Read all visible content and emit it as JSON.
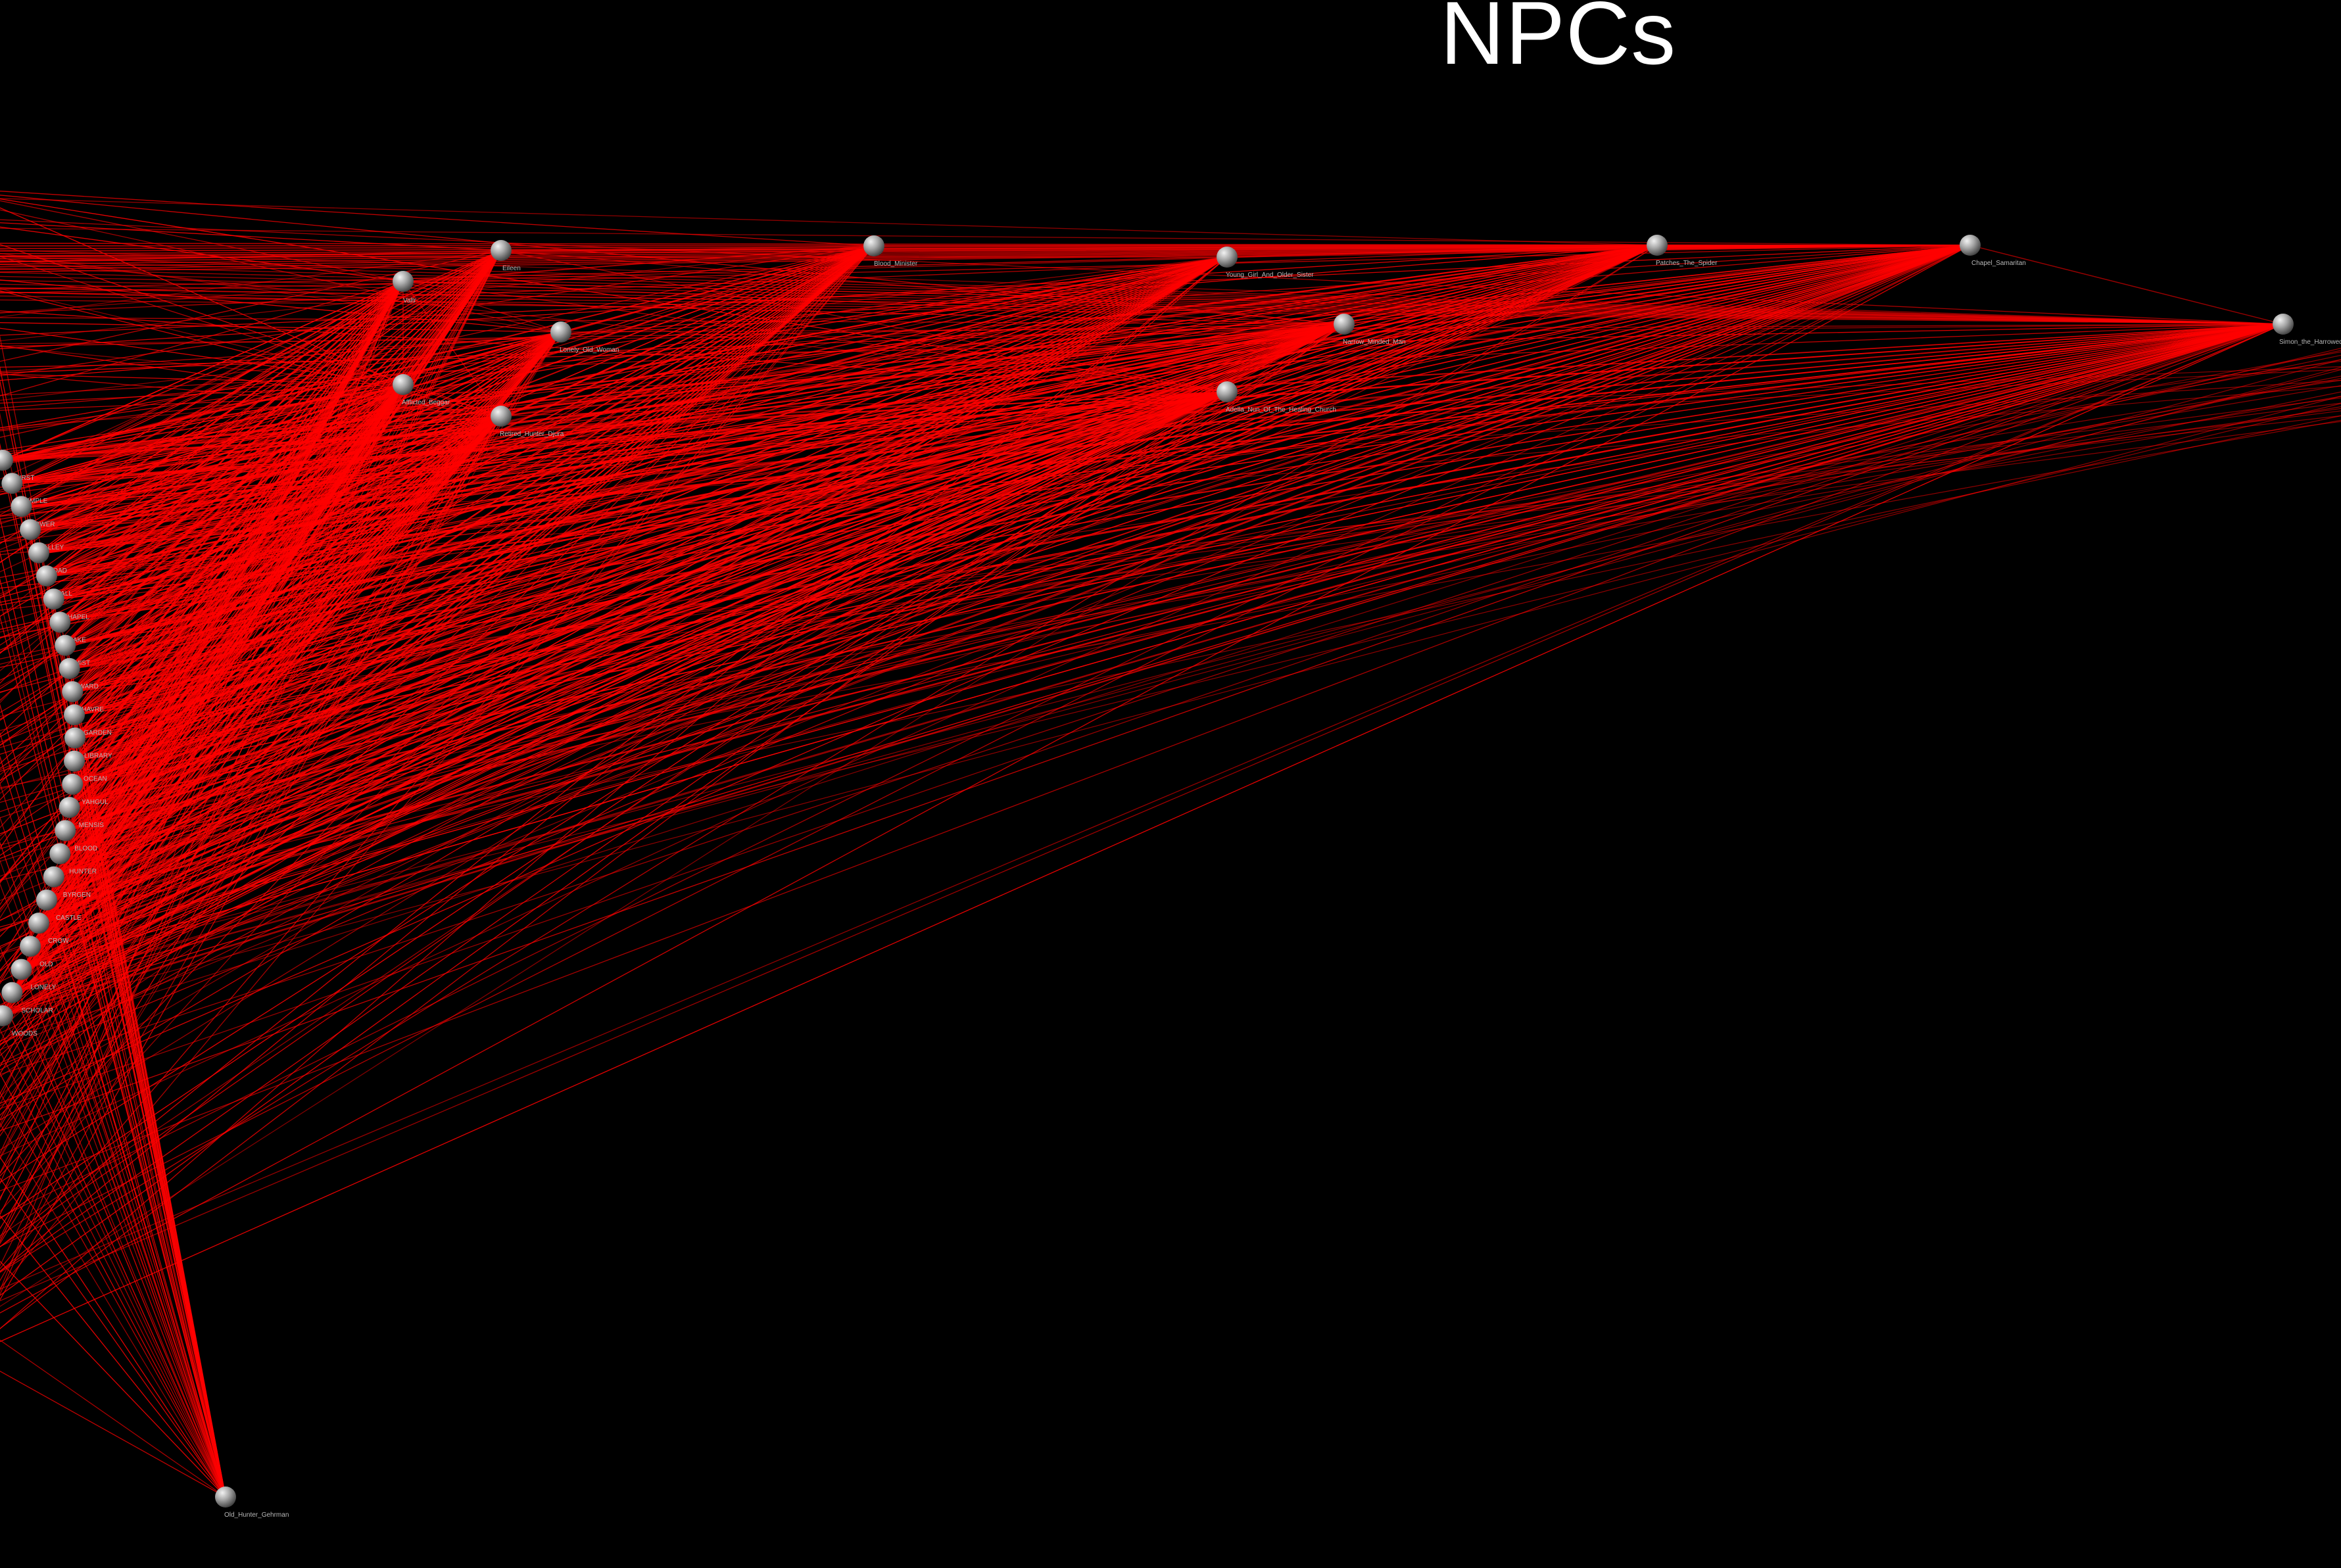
{
  "title": "NPCs",
  "colors": {
    "background": "#000000",
    "edge": "#ff0000",
    "node_light": "#f2f2f2",
    "node_dark": "#4a4a4a",
    "label": "#b8b8b8",
    "title": "#ffffff"
  },
  "npc_nodes": [
    {
      "id": "valtr",
      "label": "Valtr"
    },
    {
      "id": "eileen",
      "label": "Eileen"
    },
    {
      "id": "blood-minister",
      "label": "Blood_Minister"
    },
    {
      "id": "young-girl",
      "label": "Young_Girl_And_Older_Sister"
    },
    {
      "id": "patches",
      "label": "Patches_The_Spider"
    },
    {
      "id": "chapel-samaritan",
      "label": "Chapel_Samaritan"
    },
    {
      "id": "lonely-old-woman",
      "label": "Lonely_Old_Woman"
    },
    {
      "id": "narrow-minded-man",
      "label": "Narrow_Minded_Man"
    },
    {
      "id": "simon",
      "label": "Simon_the_Harrowed"
    },
    {
      "id": "afflicted-beggar",
      "label": "Afflicted_Beggar"
    },
    {
      "id": "retired-hunter",
      "label": "Retired_Hunter_Djura"
    },
    {
      "id": "adella",
      "label": "Adella_Nun_Of_The_Healing_Church"
    },
    {
      "id": "gehrman",
      "label": "Old_Hunter_Gehrman"
    }
  ],
  "location_nodes": [
    {
      "id": "loc-01",
      "label": "HURST"
    },
    {
      "id": "loc-02",
      "label": "TEMPLE"
    },
    {
      "id": "loc-03",
      "label": "TOWER"
    },
    {
      "id": "loc-04",
      "label": "VALLEY"
    },
    {
      "id": "loc-05",
      "label": "ROAD"
    },
    {
      "id": "loc-06",
      "label": "HALL"
    },
    {
      "id": "loc-07",
      "label": "CHAPEL"
    },
    {
      "id": "loc-08",
      "label": "LAKE"
    },
    {
      "id": "loc-09",
      "label": "MIST"
    },
    {
      "id": "loc-10",
      "label": "WARD"
    },
    {
      "id": "loc-11",
      "label": "HAVRE"
    },
    {
      "id": "loc-12",
      "label": "GARDEN"
    },
    {
      "id": "loc-13",
      "label": "LIBRARY"
    },
    {
      "id": "loc-14",
      "label": "OCEAN"
    },
    {
      "id": "loc-15",
      "label": "YAHGUL"
    },
    {
      "id": "loc-16",
      "label": "MENSIS"
    },
    {
      "id": "loc-17",
      "label": "BLOOD"
    },
    {
      "id": "loc-18",
      "label": "HUNTER"
    },
    {
      "id": "loc-19",
      "label": "BYRGEN"
    },
    {
      "id": "loc-20",
      "label": "CASTLE"
    },
    {
      "id": "loc-21",
      "label": "CROW"
    },
    {
      "id": "loc-22",
      "label": "OLD"
    },
    {
      "id": "loc-23",
      "label": "LONELY"
    },
    {
      "id": "loc-24",
      "label": "SCHOLAR"
    },
    {
      "id": "loc-25",
      "label": "WOODS"
    }
  ]
}
